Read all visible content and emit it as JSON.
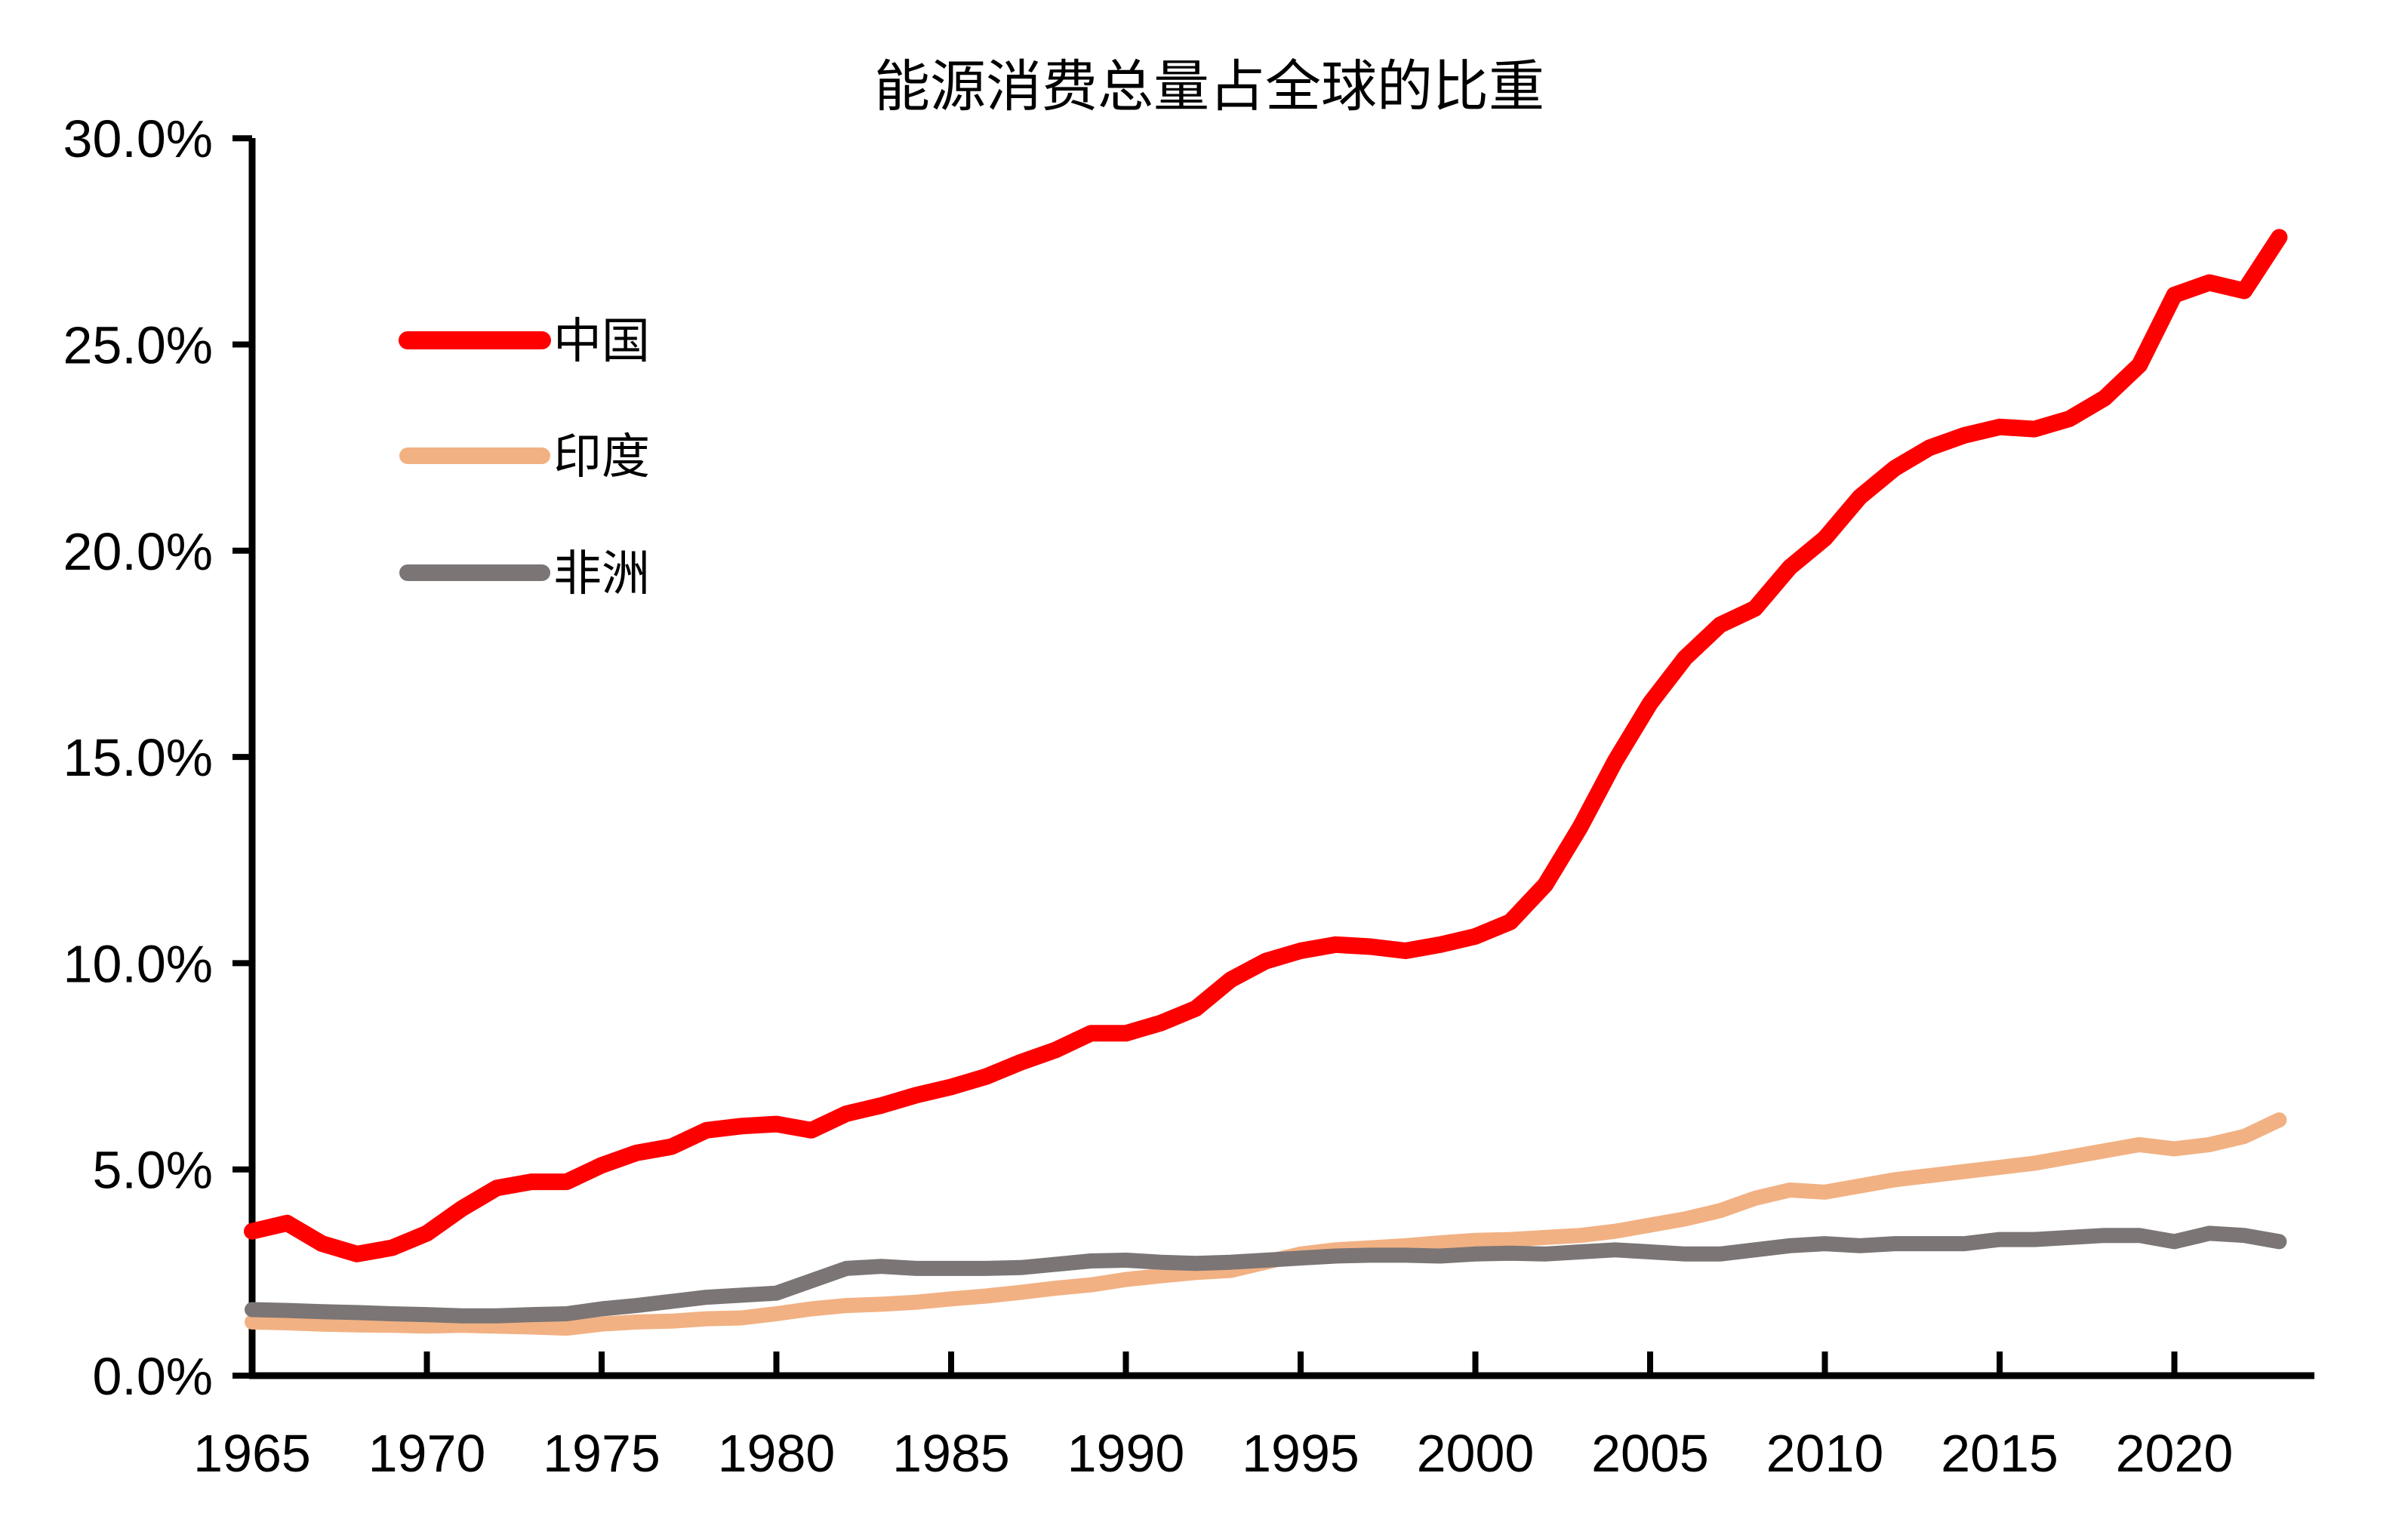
{
  "chart_data": {
    "type": "line",
    "title": "能源消费总量占全球的比重",
    "ylabel": "",
    "xlabel": "",
    "ylim": [
      0,
      30
    ],
    "xlim": [
      1965,
      2024
    ],
    "grid": false,
    "legend_position": "upper-left-inside",
    "y_axis": {
      "tick_values": [
        30,
        25,
        20,
        15,
        10,
        5,
        0
      ],
      "tick_labels": [
        "30.0%",
        "25.0%",
        "20.0%",
        "15.0%",
        "10.0%",
        "5.0%",
        "0.0%"
      ]
    },
    "x_axis": {
      "tick_years": [
        1970,
        1975,
        1980,
        1985,
        1990,
        1995,
        2000,
        2005,
        2010,
        2015,
        2020
      ],
      "tick_labels": [
        "1965",
        "1970",
        "1975",
        "1980",
        "1985",
        "1990",
        "1995",
        "2000",
        "2005",
        "2010",
        "2015",
        "2020"
      ],
      "label_years": [
        1965,
        1970,
        1975,
        1980,
        1985,
        1990,
        1995,
        2000,
        2005,
        2010,
        2015,
        2020
      ]
    },
    "years": {
      "start": 1965,
      "end": 2023
    },
    "series": [
      {
        "name": "中国",
        "color": "#FE0000",
        "stroke_width": 22,
        "values": [
          3.5,
          3.7,
          3.2,
          2.95,
          3.1,
          3.45,
          4.05,
          4.55,
          4.7,
          4.7,
          5.1,
          5.4,
          5.55,
          5.95,
          6.05,
          6.1,
          5.95,
          6.35,
          6.55,
          6.8,
          7.0,
          7.25,
          7.6,
          7.9,
          8.3,
          8.3,
          8.55,
          8.9,
          9.6,
          10.05,
          10.3,
          10.45,
          10.4,
          10.3,
          10.45,
          10.65,
          11.0,
          11.9,
          13.3,
          14.9,
          16.3,
          17.4,
          18.2,
          18.6,
          19.6,
          20.3,
          21.3,
          22.0,
          22.5,
          22.8,
          23.0,
          22.95,
          23.2,
          23.7,
          24.5,
          26.2,
          26.5,
          26.3,
          27.6
        ]
      },
      {
        "name": "印度",
        "color": "#F2B183",
        "stroke_width": 20,
        "values": [
          1.3,
          1.28,
          1.25,
          1.23,
          1.22,
          1.2,
          1.22,
          1.2,
          1.18,
          1.15,
          1.25,
          1.3,
          1.32,
          1.38,
          1.4,
          1.5,
          1.62,
          1.7,
          1.73,
          1.78,
          1.86,
          1.93,
          2.02,
          2.12,
          2.2,
          2.33,
          2.42,
          2.5,
          2.55,
          2.75,
          2.95,
          3.05,
          3.1,
          3.15,
          3.22,
          3.28,
          3.3,
          3.35,
          3.4,
          3.5,
          3.65,
          3.8,
          4.0,
          4.3,
          4.5,
          4.45,
          4.6,
          4.75,
          4.85,
          4.95,
          5.05,
          5.15,
          5.3,
          5.45,
          5.6,
          5.5,
          5.6,
          5.8,
          6.2
        ]
      },
      {
        "name": "非洲",
        "color": "#7B7575",
        "stroke_width": 20,
        "values": [
          1.6,
          1.58,
          1.55,
          1.53,
          1.5,
          1.48,
          1.45,
          1.45,
          1.48,
          1.5,
          1.62,
          1.7,
          1.8,
          1.9,
          1.95,
          2.0,
          2.3,
          2.6,
          2.65,
          2.6,
          2.6,
          2.6,
          2.62,
          2.7,
          2.78,
          2.8,
          2.75,
          2.72,
          2.75,
          2.8,
          2.85,
          2.9,
          2.92,
          2.92,
          2.9,
          2.95,
          2.97,
          2.95,
          3.0,
          3.05,
          3.0,
          2.95,
          2.95,
          3.05,
          3.15,
          3.2,
          3.15,
          3.2,
          3.2,
          3.2,
          3.3,
          3.3,
          3.35,
          3.4,
          3.4,
          3.25,
          3.45,
          3.4,
          3.25
        ]
      }
    ]
  }
}
